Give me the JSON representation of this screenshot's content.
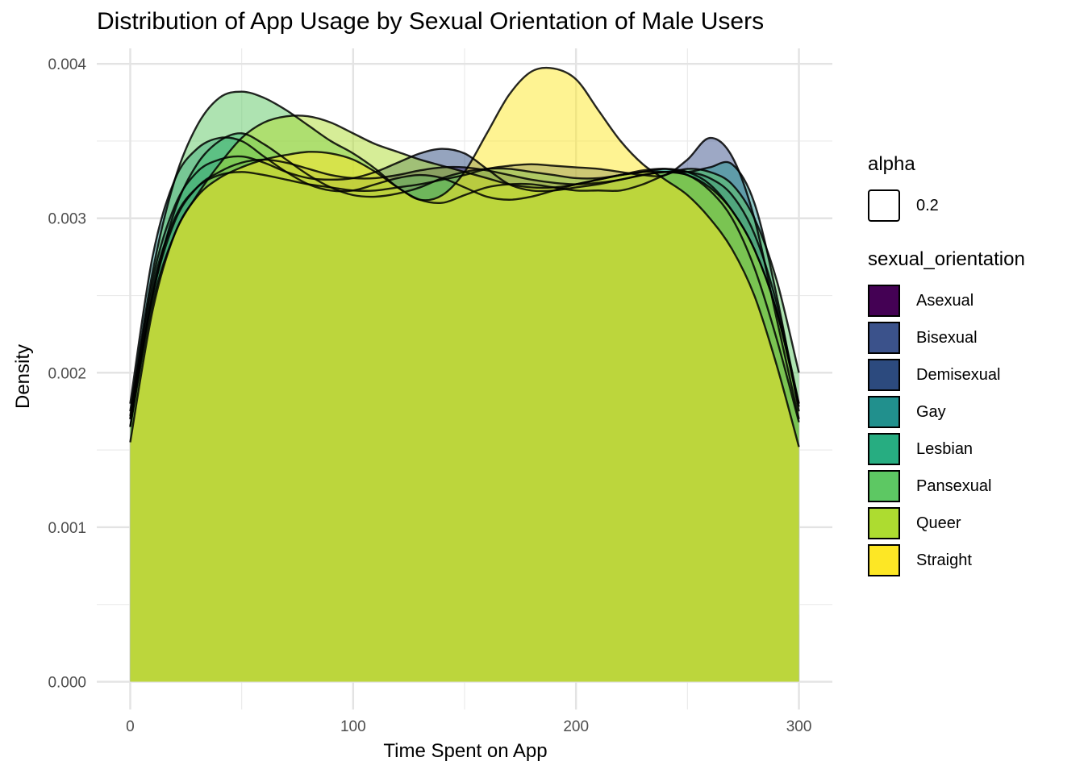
{
  "chart_data": {
    "type": "area",
    "title": "Distribution of App Usage by Sexual Orientation of Male Users",
    "xlabel": "Time Spent on App",
    "ylabel": "Density",
    "xlim": [
      -15,
      315
    ],
    "ylim": [
      -0.00018,
      0.0041
    ],
    "x_ticks": [
      0,
      100,
      200,
      300
    ],
    "y_ticks": [
      0.0,
      0.001,
      0.002,
      0.003,
      0.004
    ],
    "y_tick_labels": [
      "0.000",
      "0.001",
      "0.002",
      "0.003",
      "0.004"
    ],
    "grid": true,
    "legend_position": "right",
    "legends": [
      {
        "title": "alpha",
        "entries": [
          "0.2"
        ]
      },
      {
        "title": "sexual_orientation",
        "entries": [
          "Asexual",
          "Bisexual",
          "Demisexual",
          "Gay",
          "Lesbian",
          "Pansexual",
          "Queer",
          "Straight"
        ]
      }
    ],
    "x": [
      0,
      10,
      20,
      30,
      40,
      50,
      60,
      70,
      80,
      90,
      100,
      110,
      120,
      130,
      140,
      150,
      160,
      170,
      180,
      190,
      200,
      210,
      220,
      230,
      240,
      250,
      260,
      270,
      280,
      290,
      300
    ],
    "series": [
      {
        "name": "Asexual",
        "color": "#440154",
        "values": [
          0.00165,
          0.0025,
          0.00298,
          0.0032,
          0.0033,
          0.00336,
          0.00338,
          0.00336,
          0.00332,
          0.00328,
          0.00326,
          0.00326,
          0.00328,
          0.00331,
          0.00333,
          0.00333,
          0.00331,
          0.00328,
          0.00325,
          0.00323,
          0.00322,
          0.00323,
          0.00325,
          0.00328,
          0.0033,
          0.00328,
          0.00318,
          0.003,
          0.00268,
          0.00222,
          0.00168
        ]
      },
      {
        "name": "Bisexual",
        "color": "#3b528b",
        "values": [
          0.0017,
          0.00255,
          0.003,
          0.0032,
          0.00328,
          0.0033,
          0.00328,
          0.00325,
          0.00322,
          0.0032,
          0.00318,
          0.00318,
          0.0032,
          0.00322,
          0.00325,
          0.00328,
          0.00332,
          0.00334,
          0.00335,
          0.00334,
          0.00333,
          0.00332,
          0.0033,
          0.00328,
          0.00328,
          0.00338,
          0.00352,
          0.0034,
          0.003,
          0.00235,
          0.0017
        ]
      },
      {
        "name": "Demisexual",
        "color": "#2c4a7e",
        "values": [
          0.00172,
          0.0026,
          0.00308,
          0.0033,
          0.00338,
          0.0034,
          0.00336,
          0.0033,
          0.00326,
          0.00325,
          0.00326,
          0.0033,
          0.00336,
          0.00342,
          0.00345,
          0.00342,
          0.00332,
          0.00322,
          0.00318,
          0.00318,
          0.0032,
          0.00322,
          0.00325,
          0.00328,
          0.0033,
          0.0033,
          0.00326,
          0.00315,
          0.0029,
          0.00245,
          0.0018
        ]
      },
      {
        "name": "Gay",
        "color": "#21908d",
        "values": [
          0.0018,
          0.00275,
          0.00325,
          0.00345,
          0.00352,
          0.0035,
          0.0034,
          0.0033,
          0.00322,
          0.00318,
          0.00318,
          0.00322,
          0.00326,
          0.00328,
          0.00326,
          0.0032,
          0.00314,
          0.00312,
          0.00314,
          0.00318,
          0.00322,
          0.00325,
          0.00328,
          0.00331,
          0.00332,
          0.0033,
          0.00333,
          0.00335,
          0.0031,
          0.0025,
          0.00175
        ]
      },
      {
        "name": "Lesbian",
        "color": "#27ad81",
        "values": [
          0.0017,
          0.0025,
          0.00305,
          0.00335,
          0.0035,
          0.00355,
          0.00348,
          0.00338,
          0.00328,
          0.0032,
          0.00315,
          0.00314,
          0.00316,
          0.0032,
          0.00326,
          0.0033,
          0.00332,
          0.00332,
          0.0033,
          0.00328,
          0.00326,
          0.00326,
          0.00328,
          0.0033,
          0.00332,
          0.0033,
          0.00322,
          0.00305,
          0.0028,
          0.0024,
          0.0018
        ]
      },
      {
        "name": "Pansexual",
        "color": "#5dc863",
        "values": [
          0.00175,
          0.00265,
          0.00325,
          0.0036,
          0.00378,
          0.00382,
          0.00378,
          0.0037,
          0.0036,
          0.0035,
          0.00342,
          0.00332,
          0.0032,
          0.00312,
          0.0031,
          0.00315,
          0.0032,
          0.00322,
          0.00322,
          0.0032,
          0.00318,
          0.00318,
          0.00318,
          0.00322,
          0.00328,
          0.00332,
          0.0033,
          0.00322,
          0.003,
          0.0026,
          0.002
        ]
      },
      {
        "name": "Queer",
        "color": "#addc30",
        "values": [
          0.00165,
          0.00245,
          0.0029,
          0.00315,
          0.00335,
          0.00352,
          0.00362,
          0.00366,
          0.00366,
          0.00362,
          0.00355,
          0.00348,
          0.00343,
          0.00338,
          0.00334,
          0.0033,
          0.00326,
          0.00322,
          0.0032,
          0.0032,
          0.00322,
          0.00325,
          0.00328,
          0.0033,
          0.0033,
          0.00328,
          0.0032,
          0.00305,
          0.0028,
          0.0024,
          0.00178
        ]
      },
      {
        "name": "Straight",
        "color": "#fde725",
        "values": [
          0.00155,
          0.0024,
          0.0029,
          0.00314,
          0.00326,
          0.00333,
          0.00338,
          0.00341,
          0.00343,
          0.00342,
          0.00338,
          0.0033,
          0.0032,
          0.00312,
          0.00315,
          0.0033,
          0.00355,
          0.0038,
          0.00395,
          0.00397,
          0.0039,
          0.0037,
          0.0035,
          0.00335,
          0.00325,
          0.00315,
          0.003,
          0.0028,
          0.0025,
          0.00205,
          0.00152
        ]
      }
    ]
  }
}
